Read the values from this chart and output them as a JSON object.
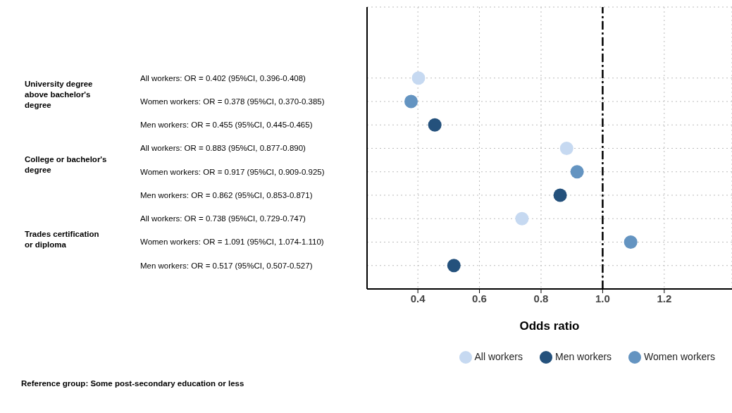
{
  "chart_data": {
    "type": "scatter",
    "xlabel": "Odds ratio",
    "categories": [
      "All workers: OR = 0.402 (95%CI, 0.396-0.408)",
      "Women workers: OR = 0.378 (95%CI, 0.370-0.385)",
      "Men workers: OR = 0.455 (95%CI, 0.445-0.465)",
      "All workers: OR = 0.883 (95%CI, 0.877-0.890)",
      "Women workers: OR = 0.917 (95%CI, 0.909-0.925)",
      "Men workers: OR = 0.862 (95%CI, 0.853-0.871)",
      "All workers: OR = 0.738 (95%CI, 0.729-0.747)",
      "Women workers: OR = 1.091 (95%CI, 1.074-1.110)",
      "Men workers: OR = 0.517 (95%CI, 0.507-0.527)"
    ],
    "series": [
      {
        "name": "All workers",
        "color": "#c6d9f1",
        "values": [
          0.402,
          null,
          null,
          0.883,
          null,
          null,
          0.738,
          null,
          null
        ]
      },
      {
        "name": "Men workers",
        "color": "#24517c",
        "values": [
          null,
          null,
          0.455,
          null,
          null,
          0.862,
          null,
          null,
          0.517
        ]
      },
      {
        "name": "Women workers",
        "color": "#6494c1",
        "values": [
          null,
          0.378,
          null,
          null,
          0.917,
          null,
          null,
          1.091,
          null
        ]
      }
    ],
    "xlim": [
      0.235,
      1.42
    ],
    "xticks": [
      {
        "value": 0.4,
        "label": "0.4"
      },
      {
        "value": 0.6,
        "label": "0.6"
      },
      {
        "value": 0.8,
        "label": "0.8"
      },
      {
        "value": 1.0,
        "label": "1.0"
      },
      {
        "value": 1.2,
        "label": "1.2"
      }
    ],
    "ref_lines": [
      {
        "axis": "x",
        "value": 1.0,
        "color": "#000000",
        "line_style": "dashed"
      }
    ],
    "annotations": [
      "University degree above bachelor's degree",
      "College or bachelor's degree",
      "Trades certification or diploma",
      "Reference group: Some post-secondary education or less"
    ],
    "grid": true,
    "legend": "bottom right",
    "marker": "circle",
    "orientation": "horizontal"
  }
}
